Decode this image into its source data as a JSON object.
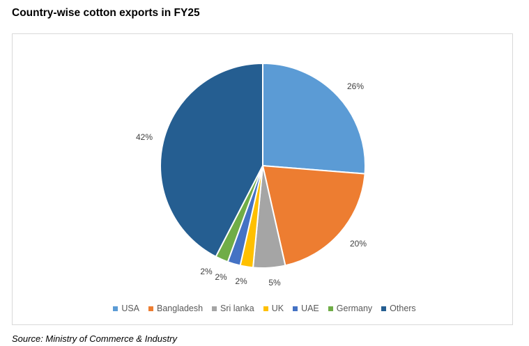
{
  "chart_data": {
    "type": "pie",
    "title": "Country-wise cotton exports in FY25",
    "categories": [
      "USA",
      "Bangladesh",
      "Sri lanka",
      "UK",
      "UAE",
      "Germany",
      "Others"
    ],
    "values": [
      26,
      20,
      5,
      2,
      2,
      2,
      42
    ],
    "labels": [
      "26%",
      "20%",
      "5%",
      "2%",
      "2%",
      "2%",
      "42%"
    ],
    "colors": [
      "#5b9bd5",
      "#ed7d31",
      "#a5a5a5",
      "#ffc000",
      "#4472c4",
      "#70ad47",
      "#255e91"
    ],
    "unit": "%",
    "legend_position": "bottom",
    "start_angle_deg": 0,
    "direction": "clockwise"
  },
  "source": "Source: Ministry of Commerce & Industry"
}
